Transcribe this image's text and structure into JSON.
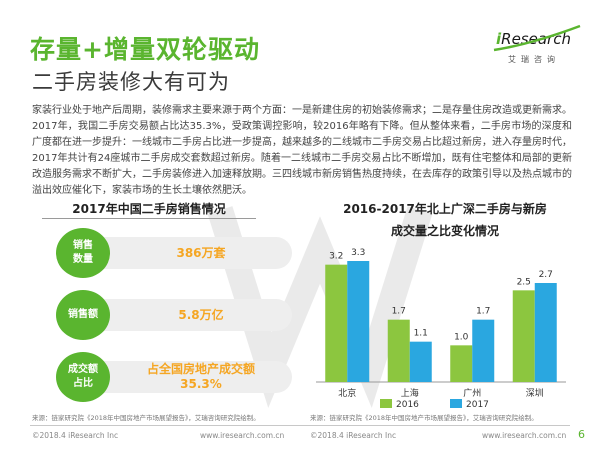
{
  "header": {
    "title": "存量+增量双轮驱动",
    "subtitle": "二手房装修大有可为",
    "logo_mark": "i",
    "logo_word": "Research",
    "logo_cn": "艾瑞咨询"
  },
  "intro": "家装行业处于地产后周期，装修需求主要来源于两个方面：一是新建住房的初始装修需求；二是存量住房改造或更新需求。2017年，我国二手房交易额占比达35.3%，受政策调控影响，较2016年略有下降。但从整体来看，二手房市场的深度和广度都在进一步提升：一线城市二手房占比进一步提高，越来越多的二线城市二手房交易占比超过新房，进入存量房时代，2017年共计有24座城市二手房成交套数超过新房。随着一二线城市二手房交易占比不断增加，既有住宅整体和局部的更新改造服务需求不断扩大，二手房装修进入加速释放期。三四线城市新房销售热度持续，在去库存的政策引导以及热点城市的溢出效应催化下，家装市场的生长土壤依然肥沃。",
  "left_panel": {
    "title": "2017年中国二手房销售情况",
    "stats": [
      {
        "label": "销售\n数量",
        "value": "386万套"
      },
      {
        "label": "销售额",
        "value": "5.8万亿"
      },
      {
        "label": "成交额\n占比",
        "value": "占全国房地产成交额\n35.3%"
      }
    ],
    "source": "来源：链家研究院《2018年中国房地产市场展望报告》，艾瑞咨询研究院绘制。"
  },
  "chart_data": {
    "type": "bar",
    "title": "2016-2017年北上广深二手房与新房\n成交量之比变化情况",
    "categories": [
      "北京",
      "上海",
      "广州",
      "深圳"
    ],
    "series": [
      {
        "name": "2016",
        "values": [
          3.2,
          1.7,
          1.0,
          2.5
        ],
        "color": "#8cc63f"
      },
      {
        "name": "2017",
        "values": [
          3.3,
          1.1,
          1.7,
          2.7
        ],
        "color": "#2aa7e0"
      }
    ],
    "ylim": [
      0,
      3.6
    ],
    "grid": false,
    "legend": "bottom",
    "source": "来源：链家研究院《2018年中国房地产市场展望报告》，艾瑞咨询研究院绘制。"
  },
  "footer": {
    "left_copyright": "©2018.4 iResearch Inc",
    "left_url": "www.iresearch.com.cn",
    "right_copyright": "©2018.4 iResearch Inc",
    "right_url": "www.iresearch.com.cn",
    "page": "6"
  },
  "colors": {
    "accent_green": "#5ab52f",
    "value_orange": "#f5a623",
    "bar_2016": "#8cc63f",
    "bar_2017": "#2aa7e0"
  }
}
